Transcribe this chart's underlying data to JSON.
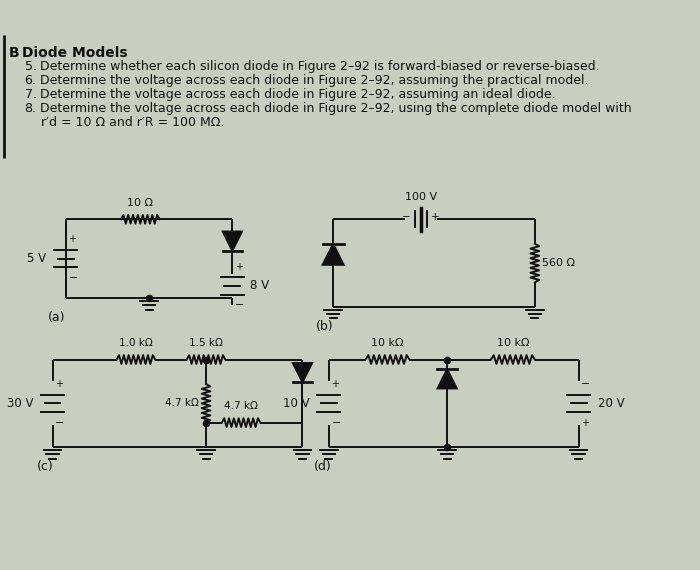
{
  "bg_color": "#c8cfc0",
  "text_color": "#1a1a1a",
  "line_color": "#111111",
  "section": "B",
  "title": "Diode Models",
  "items": [
    [
      "5.",
      "Determine whether each silicon diode in Figure 2–92 is forward-biased or reverse-biased."
    ],
    [
      "6.",
      "Determine the voltage across each diode in Figure 2–92, assuming the practical model."
    ],
    [
      "7.",
      "Determine the voltage across each diode in Figure 2–92, assuming an ideal diode."
    ],
    [
      "8.",
      "Determine the voltage across each diode in Figure 2–92, using the complete diode model with"
    ],
    [
      "",
      "    r′d = 10 Ω and r′R = 100 MΩ."
    ]
  ]
}
